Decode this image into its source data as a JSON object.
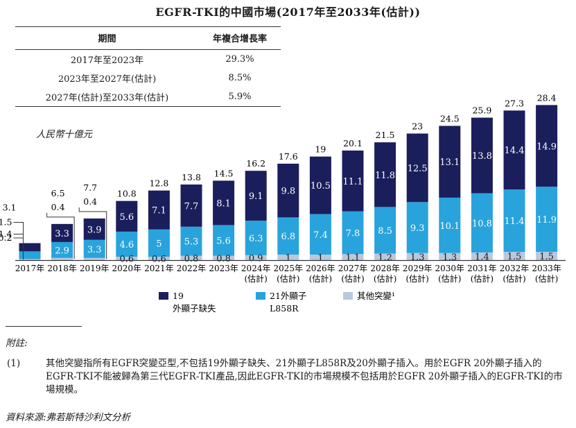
{
  "title": "EGFR-TKI的中國市場(2017年至2033年(估計))",
  "cagr_table": {
    "header_period": "期間",
    "header_cagr": "年複合增長率",
    "rows": [
      {
        "period": "2017年至2023年",
        "cagr": "29.3%"
      },
      {
        "period": "2023年至2027年(估計)",
        "cagr": "8.5%"
      },
      {
        "period": "2027年(估計)至2033年(估計)",
        "cagr": "5.9%"
      }
    ]
  },
  "unit_label": "人民幣十億元",
  "chart_data": {
    "type": "bar",
    "stacked": true,
    "categories": [
      "2017年",
      "2018年",
      "2019年",
      "2020年",
      "2021年",
      "2022年",
      "2023年",
      "2024年",
      "2025年",
      "2026年",
      "2027年",
      "2028年",
      "2029年",
      "2030年",
      "2031年",
      "2032年",
      "2033年"
    ],
    "category_sublabels": [
      "",
      "",
      "",
      "",
      "",
      "",
      "",
      "(估計)",
      "(估計)",
      "(估計)",
      "(估計)",
      "(估計)",
      "(估計)",
      "(估計)",
      "(估計)",
      "(估計)",
      "(估計)"
    ],
    "series": [
      {
        "name": "其他突變",
        "color": "#b8c9de",
        "values": [
          0.2,
          0.4,
          0.4,
          0.6,
          0.6,
          0.8,
          0.8,
          0.9,
          1.0,
          1.0,
          1.1,
          1.2,
          1.3,
          1.3,
          1.4,
          1.5,
          1.5
        ]
      },
      {
        "name": "21外顯子L858R",
        "color": "#29a3dc",
        "values": [
          1.4,
          2.9,
          3.3,
          4.6,
          5.0,
          5.3,
          5.6,
          6.3,
          6.8,
          7.4,
          7.8,
          8.5,
          9.3,
          10.1,
          10.8,
          11.4,
          11.9
        ]
      },
      {
        "name": "19外顯子缺失",
        "color": "#1a1f5c",
        "values": [
          1.5,
          3.3,
          3.9,
          5.6,
          7.1,
          7.7,
          8.1,
          9.1,
          9.8,
          10.5,
          11.1,
          11.8,
          12.5,
          13.1,
          13.8,
          14.4,
          14.9
        ]
      }
    ],
    "totals": [
      3.1,
      6.5,
      7.7,
      10.8,
      12.8,
      13.8,
      14.5,
      16.2,
      17.6,
      19.0,
      20.1,
      21.5,
      23.0,
      24.5,
      25.9,
      27.3,
      28.4
    ],
    "ylim": [
      0,
      30
    ],
    "legend": [
      {
        "line1": "19",
        "line2": "外顯子缺失",
        "color": "#1a1f5c"
      },
      {
        "line1": "21外顯子",
        "line2": "L858R",
        "color": "#29a3dc"
      },
      {
        "line1": "其他突變¹",
        "line2": "",
        "color": "#b8c9de"
      }
    ]
  },
  "notes": {
    "heading": "附註:",
    "items": [
      {
        "marker": "(1)",
        "text": "其他突變指所有EGFR突變亞型,不包括19外顯子缺失、21外顯子L858R及20外顯子插入。用於EGFR 20外顯子插入的EGFR-TKI不能被歸為第三代EGFR-TKI產品,因此EGFR-TKI的市場規模不包括用於EGFR 20外顯子插入的EGFR-TKI的市場規模。"
      }
    ]
  },
  "source": "資料來源:弗若斯特沙利文分析"
}
